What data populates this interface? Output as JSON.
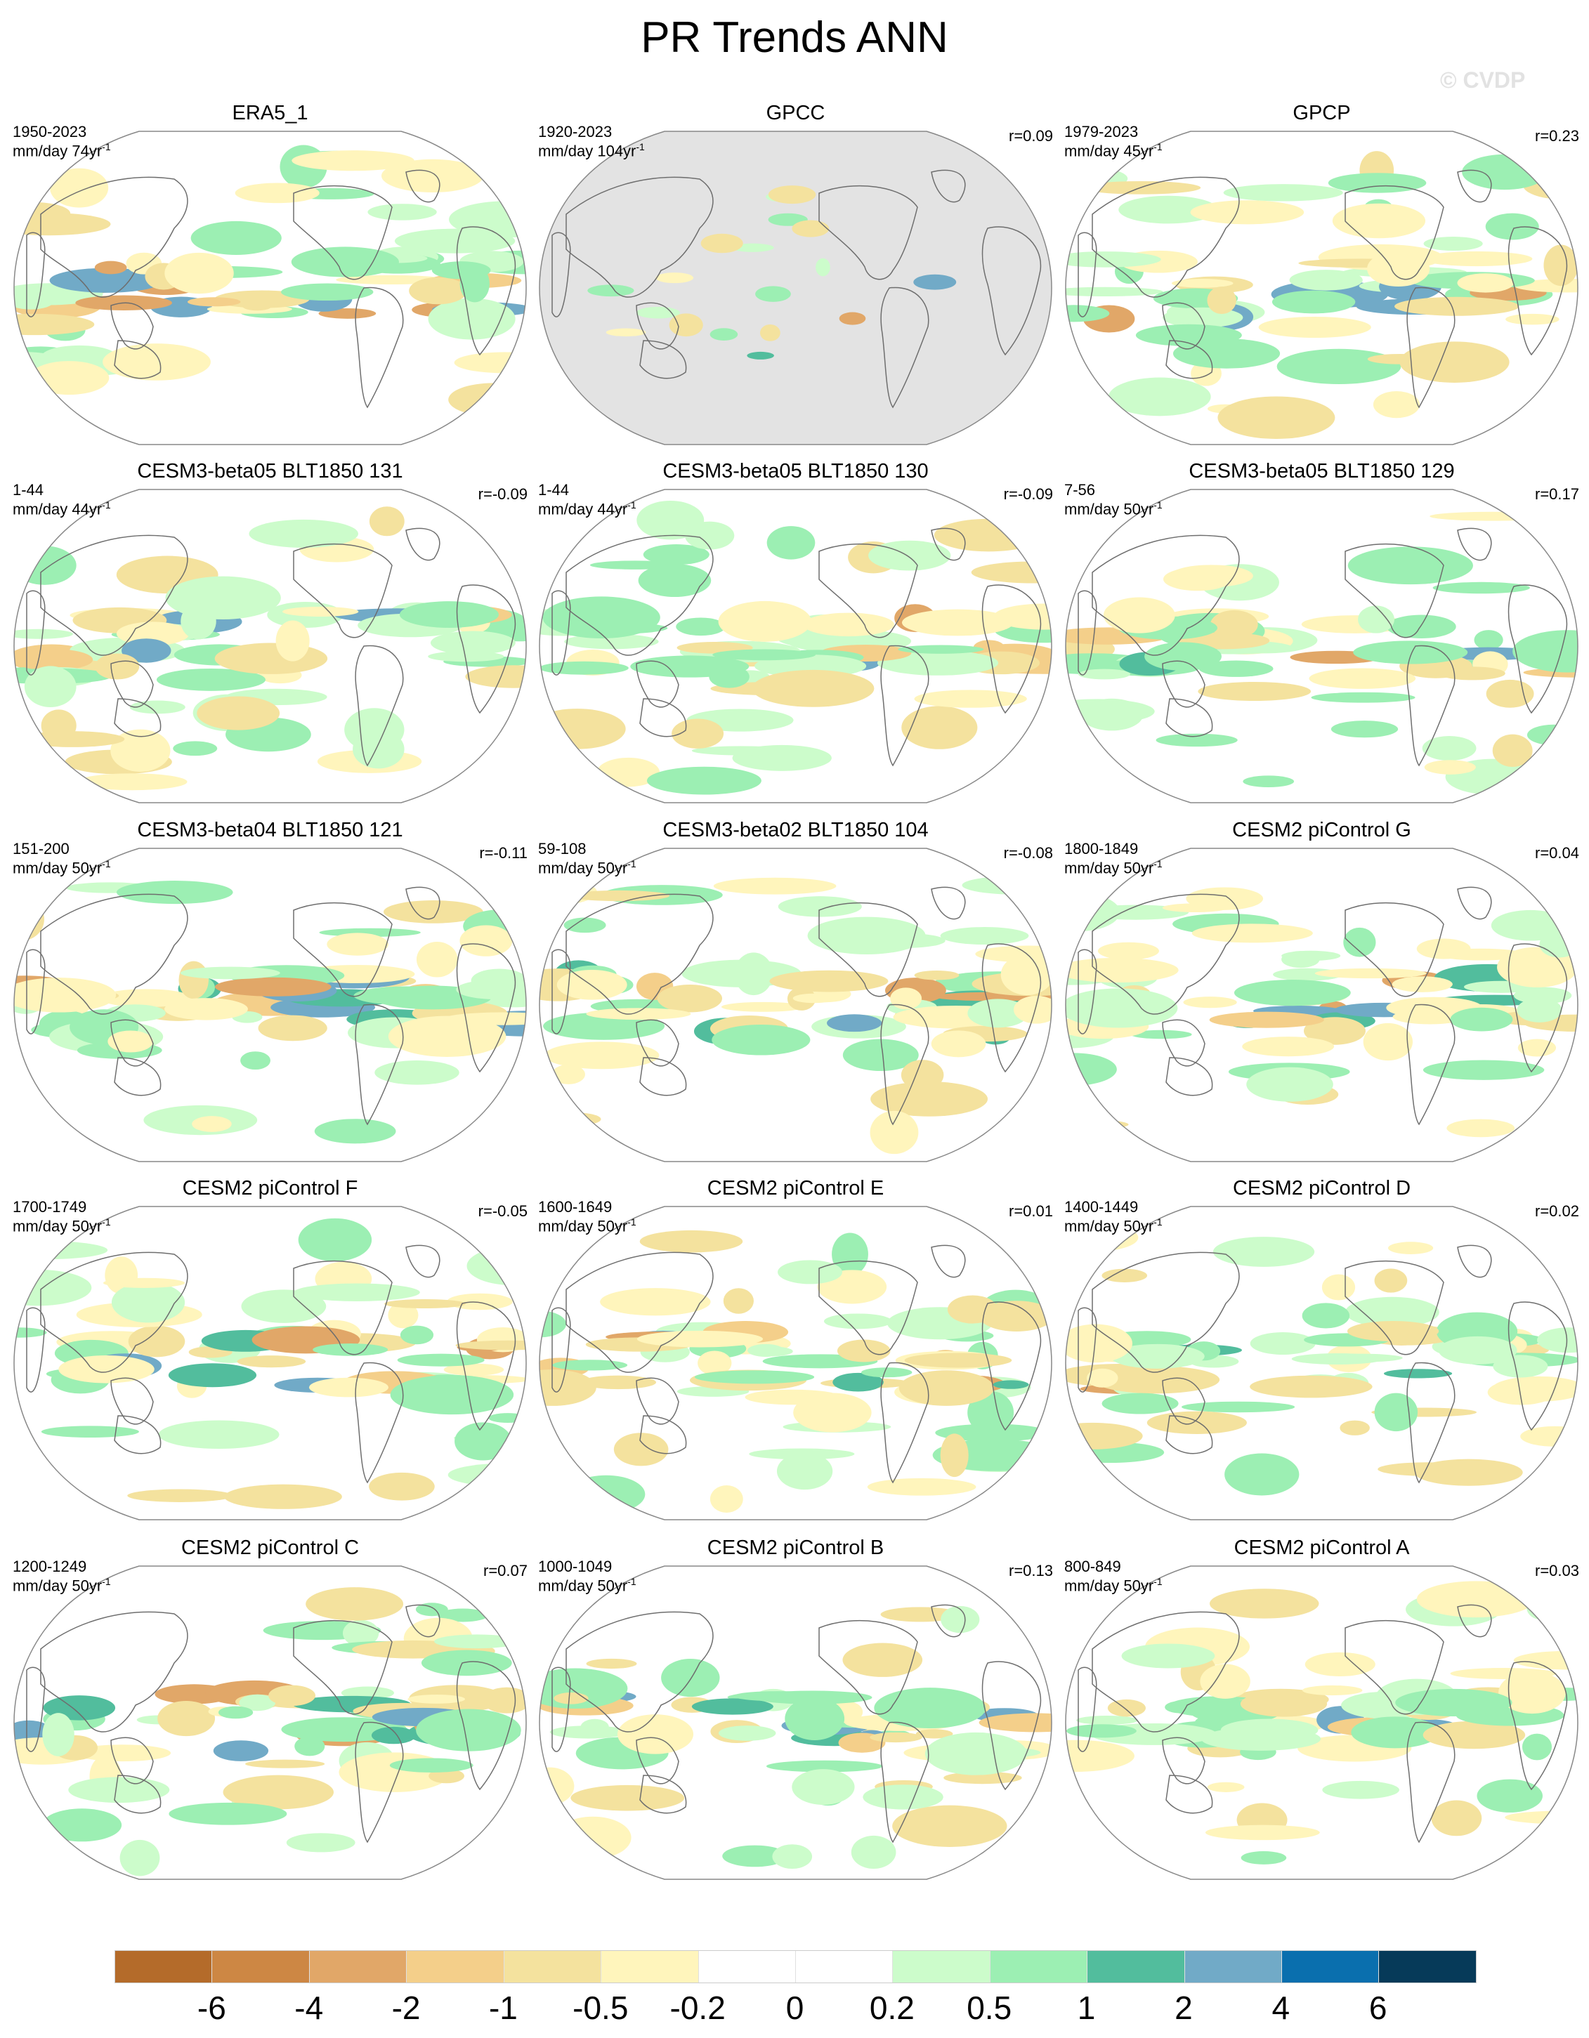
{
  "title": "PR Trends ANN",
  "copyright": "© CVDP",
  "colors": {
    "land_mask": "#e3e3e3",
    "coast": "#6e6e6e",
    "outline": "#888888"
  },
  "chart_data": {
    "type": "heatmap",
    "title": "PR Trends ANN",
    "colorbar": {
      "labels": [
        "-6",
        "-4",
        "-2",
        "-1",
        "-0.5",
        "-0.2",
        "0",
        "0.2",
        "0.5",
        "1",
        "2",
        "4",
        "6"
      ],
      "colors": [
        "#b46b2a",
        "#cd8744",
        "#e1a768",
        "#f4cf8a",
        "#f4e29e",
        "#fff5bc",
        "#ffffff",
        "#ffffff",
        "#ccfccb",
        "#9cefb3",
        "#52bd9d",
        "#71aac7",
        "#0a6fae",
        "#063a59"
      ]
    },
    "panels": [
      {
        "title": "ERA5_1",
        "period": "1950-2023",
        "units": "mm/day 74yr",
        "sup": "-1",
        "r": ""
      },
      {
        "title": "GPCC",
        "period": "1920-2023",
        "units": "mm/day 104yr",
        "sup": "-1",
        "r": "r=0.09",
        "land_only": true
      },
      {
        "title": "GPCP",
        "period": "1979-2023",
        "units": "mm/day 45yr",
        "sup": "-1",
        "r": "r=0.23"
      },
      {
        "title": "CESM3-beta05 BLT1850 131",
        "period": "1-44",
        "units": "mm/day 44yr",
        "sup": "-1",
        "r": "r=-0.09"
      },
      {
        "title": "CESM3-beta05 BLT1850 130",
        "period": "1-44",
        "units": "mm/day 44yr",
        "sup": "-1",
        "r": "r=-0.09"
      },
      {
        "title": "CESM3-beta05 BLT1850 129",
        "period": "7-56",
        "units": "mm/day 50yr",
        "sup": "-1",
        "r": "r=0.17"
      },
      {
        "title": "CESM3-beta04 BLT1850 121",
        "period": "151-200",
        "units": "mm/day 50yr",
        "sup": "-1",
        "r": "r=-0.11"
      },
      {
        "title": "CESM3-beta02 BLT1850 104",
        "period": "59-108",
        "units": "mm/day 50yr",
        "sup": "-1",
        "r": "r=-0.08"
      },
      {
        "title": "CESM2 piControl G",
        "period": "1800-1849",
        "units": "mm/day 50yr",
        "sup": "-1",
        "r": "r=0.04"
      },
      {
        "title": "CESM2 piControl F",
        "period": "1700-1749",
        "units": "mm/day 50yr",
        "sup": "-1",
        "r": "r=-0.05"
      },
      {
        "title": "CESM2 piControl E",
        "period": "1600-1649",
        "units": "mm/day 50yr",
        "sup": "-1",
        "r": "r=0.01"
      },
      {
        "title": "CESM2 piControl D",
        "period": "1400-1449",
        "units": "mm/day 50yr",
        "sup": "-1",
        "r": "r=0.02"
      },
      {
        "title": "CESM2 piControl C",
        "period": "1200-1249",
        "units": "mm/day 50yr",
        "sup": "-1",
        "r": "r=0.07"
      },
      {
        "title": "CESM2 piControl B",
        "period": "1000-1049",
        "units": "mm/day 50yr",
        "sup": "-1",
        "r": "r=0.13"
      },
      {
        "title": "CESM2 piControl A",
        "period": "800-849",
        "units": "mm/day 50yr",
        "sup": "-1",
        "r": "r=0.03"
      }
    ]
  }
}
